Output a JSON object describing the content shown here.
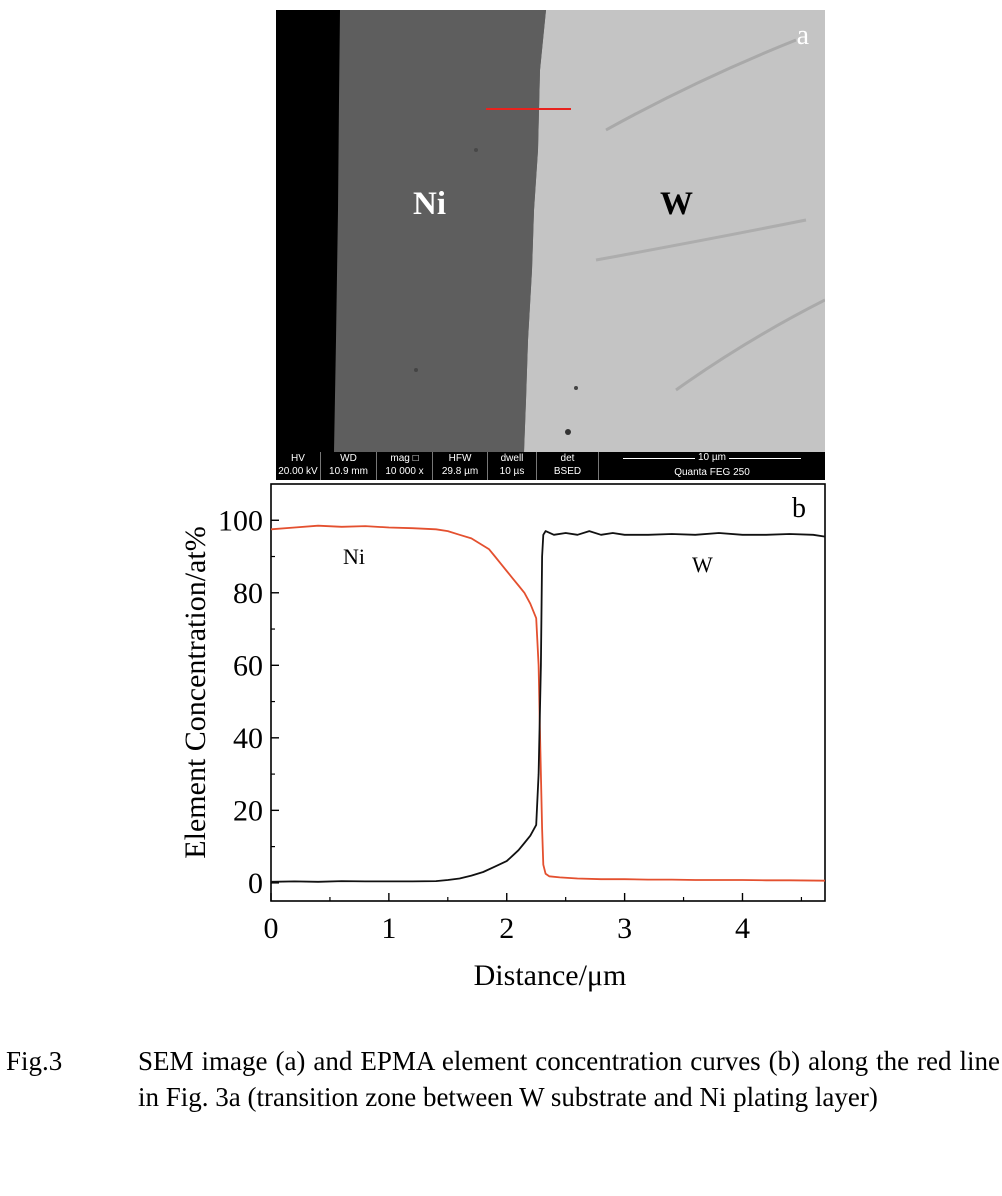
{
  "sem": {
    "panel_label": "a",
    "region_labels": [
      "Ni",
      "W"
    ],
    "databar": {
      "fields": [
        {
          "name": "HV",
          "value": "20.00 kV"
        },
        {
          "name": "WD",
          "value": "10.9 mm"
        },
        {
          "name": "mag □",
          "value": "10 000 x"
        },
        {
          "name": "HFW",
          "value": "29.8 µm"
        },
        {
          "name": "dwell",
          "value": "10 µs"
        },
        {
          "name": "det",
          "value": "BSED"
        }
      ],
      "scale_bar": "10 µm",
      "instrument": "Quanta FEG 250"
    },
    "colors": {
      "background": "#000000",
      "ni_layer": "#5e5e5e",
      "w_substrate": "#c4c4c4",
      "scan_line": "#e8231e"
    }
  },
  "chart_data": {
    "type": "line",
    "panel_label": "b",
    "title": "",
    "xlabel": "Distance/μm",
    "ylabel": "Element Concentration/at%",
    "xlim": [
      0,
      4.7
    ],
    "ylim": [
      -5,
      110
    ],
    "xticks": [
      0,
      1,
      2,
      3,
      4
    ],
    "yticks": [
      0,
      20,
      40,
      60,
      80,
      100
    ],
    "grid": false,
    "series": [
      {
        "name": "Ni",
        "color": "#e4502f",
        "x": [
          0,
          0.2,
          0.4,
          0.6,
          0.8,
          1.0,
          1.2,
          1.4,
          1.5,
          1.6,
          1.7,
          1.8,
          1.85,
          1.9,
          1.95,
          2.0,
          2.05,
          2.1,
          2.15,
          2.2,
          2.25,
          2.27,
          2.28,
          2.29,
          2.3,
          2.31,
          2.33,
          2.36,
          2.45,
          2.6,
          2.8,
          3.0,
          3.2,
          3.4,
          3.6,
          3.8,
          4.0,
          4.2,
          4.4,
          4.7
        ],
        "y": [
          97.5,
          98,
          98.5,
          98.2,
          98.4,
          98,
          97.8,
          97.5,
          97,
          96,
          95,
          93,
          92,
          90,
          88,
          86,
          84,
          82,
          80,
          77,
          73,
          60,
          45,
          30,
          15,
          5,
          2.5,
          1.8,
          1.5,
          1.2,
          1,
          1,
          0.9,
          0.9,
          0.8,
          0.8,
          0.8,
          0.7,
          0.7,
          0.6
        ]
      },
      {
        "name": "W",
        "color": "#111111",
        "x": [
          0,
          0.2,
          0.4,
          0.6,
          0.8,
          1.0,
          1.2,
          1.4,
          1.5,
          1.6,
          1.7,
          1.8,
          1.9,
          2.0,
          2.05,
          2.1,
          2.15,
          2.2,
          2.25,
          2.27,
          2.29,
          2.3,
          2.31,
          2.33,
          2.4,
          2.5,
          2.6,
          2.7,
          2.8,
          2.9,
          3.0,
          3.2,
          3.4,
          3.6,
          3.8,
          4.0,
          4.2,
          4.4,
          4.6,
          4.7
        ],
        "y": [
          0.3,
          0.4,
          0.3,
          0.5,
          0.4,
          0.4,
          0.4,
          0.5,
          0.8,
          1.2,
          2,
          3,
          4.5,
          6,
          7.5,
          9,
          11,
          13,
          16,
          30,
          60,
          90,
          96,
          97,
          96,
          96.5,
          96,
          97,
          96,
          96.5,
          96,
          96,
          96.2,
          96,
          96.5,
          96,
          96,
          96.2,
          96,
          95.5
        ]
      }
    ]
  },
  "caption": {
    "label": "Fig.3",
    "text": "SEM image (a) and EPMA element concentration curves (b) along the red line in Fig. 3a (transition zone between W substrate and Ni plating layer)"
  }
}
